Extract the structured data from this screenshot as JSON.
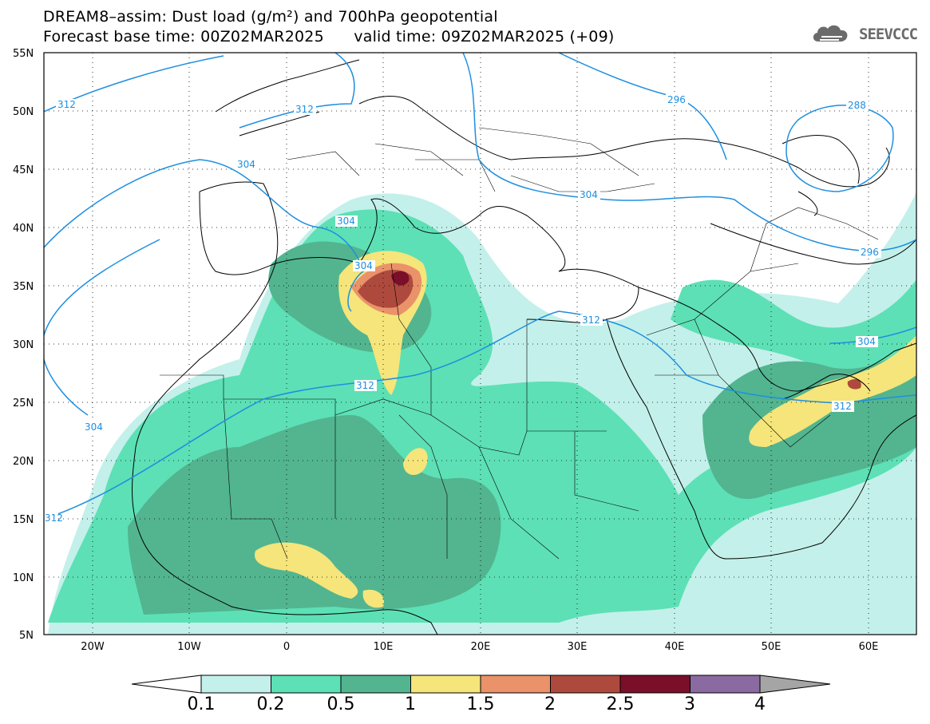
{
  "header": {
    "title_line1": "DREAM8–assim: Dust load (g/m²) and 700hPa geopotential",
    "title_line2": "Forecast base time: 00Z02MAR2025      valid time: 09Z02MAR2025 (+09)",
    "logo_text": "SEEVCCC",
    "logo_icon": "cloud-icon"
  },
  "axes": {
    "lat_labels": [
      "55N",
      "50N",
      "45N",
      "40N",
      "35N",
      "30N",
      "25N",
      "20N",
      "15N",
      "10N",
      "5N"
    ],
    "lon_labels": [
      "20W",
      "10W",
      "0",
      "10E",
      "20E",
      "30E",
      "40E",
      "50E",
      "60E"
    ]
  },
  "contours": {
    "color": "#1e8fe0",
    "labels": [
      "312",
      "312",
      "304",
      "304",
      "304",
      "296",
      "288",
      "304",
      "296",
      "312",
      "312",
      "304",
      "312",
      "304",
      "312"
    ]
  },
  "colorbar": {
    "labels": [
      "0.1",
      "0.2",
      "0.5",
      "1",
      "1.5",
      "2",
      "2.5",
      "3",
      "4"
    ],
    "colors": [
      "#c3f0ea",
      "#5de0b5",
      "#52b590",
      "#f5e57a",
      "#ea926a",
      "#ad4a3d",
      "#7a0f2a",
      "#8a6aa0",
      "#a5a5a5"
    ],
    "under_color": "#ffffff",
    "over_color": "#a5a5a5"
  }
}
